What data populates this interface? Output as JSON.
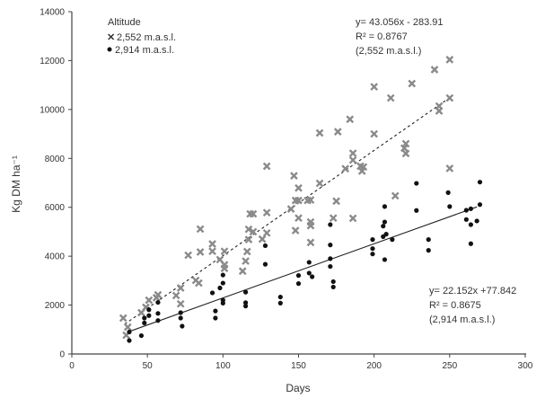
{
  "chart_data": {
    "type": "scatter",
    "title": "",
    "xlabel": "Days",
    "ylabel": "Kg DM ha⁻¹",
    "xlim": [
      0,
      300
    ],
    "ylim": [
      0,
      14000
    ],
    "xticks": [
      0,
      50,
      100,
      150,
      200,
      250,
      300
    ],
    "yticks": [
      0,
      2000,
      4000,
      6000,
      8000,
      10000,
      12000,
      14000
    ],
    "grid": false,
    "legend": {
      "title": "Altitude",
      "placement": "top-left"
    },
    "series": [
      {
        "name": "2,552 m.a.s.l.",
        "marker": "x",
        "color": "#8a8a8a",
        "trend": {
          "slope": 43.056,
          "intercept": -283.91,
          "x_range": [
            35,
            250
          ],
          "style": "dashed",
          "equation": "y= 43.056x - 283.91",
          "r2": "R² = 0.8767",
          "label": "(2,552 m.a.s.l.)"
        },
        "points": [
          [
            34,
            1470
          ],
          [
            36,
            770
          ],
          [
            37,
            1100
          ],
          [
            46,
            1690
          ],
          [
            49,
            1910
          ],
          [
            51,
            2200
          ],
          [
            56,
            2300
          ],
          [
            57,
            2420
          ],
          [
            69,
            2390
          ],
          [
            72,
            2700
          ],
          [
            72,
            2050
          ],
          [
            77,
            4040
          ],
          [
            82,
            3010
          ],
          [
            84,
            2900
          ],
          [
            85,
            5110
          ],
          [
            85,
            4170
          ],
          [
            93,
            4500
          ],
          [
            93,
            4200
          ],
          [
            98,
            3860
          ],
          [
            101,
            4200
          ],
          [
            101,
            3650
          ],
          [
            101,
            3500
          ],
          [
            113,
            3390
          ],
          [
            115,
            3800
          ],
          [
            116,
            4190
          ],
          [
            117,
            4680
          ],
          [
            117,
            5100
          ],
          [
            118,
            5730
          ],
          [
            129,
            7680
          ],
          [
            120,
            5730
          ],
          [
            129,
            5780
          ],
          [
            120,
            5000
          ],
          [
            126,
            4700
          ],
          [
            129,
            4950
          ],
          [
            147,
            7290
          ],
          [
            150,
            6790
          ],
          [
            148,
            6280
          ],
          [
            150,
            6280
          ],
          [
            145,
            5930
          ],
          [
            150,
            5560
          ],
          [
            148,
            5050
          ],
          [
            156,
            6280
          ],
          [
            158,
            6300
          ],
          [
            158,
            5400
          ],
          [
            158,
            5250
          ],
          [
            158,
            4560
          ],
          [
            164,
            6980
          ],
          [
            164,
            9040
          ],
          [
            173,
            5560
          ],
          [
            175,
            6250
          ],
          [
            176,
            9090
          ],
          [
            181,
            7580
          ],
          [
            184,
            9600
          ],
          [
            186,
            8210
          ],
          [
            186,
            7930
          ],
          [
            186,
            5550
          ],
          [
            191,
            7680
          ],
          [
            193,
            7650
          ],
          [
            192,
            7480
          ],
          [
            200,
            10930
          ],
          [
            200,
            9000
          ],
          [
            211,
            10470
          ],
          [
            214,
            6470
          ],
          [
            221,
            8600
          ],
          [
            220,
            8420
          ],
          [
            221,
            8200
          ],
          [
            225,
            11060
          ],
          [
            240,
            11630
          ],
          [
            243,
            10140
          ],
          [
            243,
            9940
          ],
          [
            250,
            12040
          ],
          [
            250,
            10470
          ],
          [
            250,
            7590
          ]
        ]
      },
      {
        "name": "2,914 m.a.s.l.",
        "marker": "dot",
        "color": "#111111",
        "trend": {
          "slope": 22.152,
          "intercept": 77.842,
          "x_range": [
            37,
            268
          ],
          "style": "solid",
          "equation": "y= 22.152x +77.842",
          "r2": "R² = 0.8675",
          "label": "(2,914 m.a.s.l.)"
        },
        "points": [
          [
            38,
            550
          ],
          [
            38,
            900
          ],
          [
            46,
            750
          ],
          [
            48,
            1470
          ],
          [
            48,
            1270
          ],
          [
            51,
            1570
          ],
          [
            51,
            1810
          ],
          [
            57,
            2110
          ],
          [
            57,
            1660
          ],
          [
            57,
            1370
          ],
          [
            72,
            1690
          ],
          [
            72,
            1470
          ],
          [
            73,
            1140
          ],
          [
            93,
            2500
          ],
          [
            95,
            1760
          ],
          [
            95,
            1470
          ],
          [
            98,
            2700
          ],
          [
            100,
            2900
          ],
          [
            100,
            3230
          ],
          [
            100,
            2200
          ],
          [
            100,
            2080
          ],
          [
            115,
            2530
          ],
          [
            115,
            2100
          ],
          [
            115,
            1960
          ],
          [
            128,
            4430
          ],
          [
            128,
            3670
          ],
          [
            138,
            2330
          ],
          [
            138,
            2080
          ],
          [
            150,
            3210
          ],
          [
            150,
            2880
          ],
          [
            157,
            3750
          ],
          [
            157,
            3310
          ],
          [
            159,
            3160
          ],
          [
            171,
            5290
          ],
          [
            171,
            4460
          ],
          [
            171,
            3900
          ],
          [
            171,
            3580
          ],
          [
            173,
            2960
          ],
          [
            173,
            2740
          ],
          [
            199,
            4680
          ],
          [
            199,
            4310
          ],
          [
            199,
            4090
          ],
          [
            206,
            5230
          ],
          [
            207,
            5400
          ],
          [
            207,
            6030
          ],
          [
            206,
            4800
          ],
          [
            208,
            4900
          ],
          [
            212,
            4680
          ],
          [
            207,
            3860
          ],
          [
            228,
            6980
          ],
          [
            228,
            5870
          ],
          [
            236,
            4680
          ],
          [
            236,
            4240
          ],
          [
            249,
            6600
          ],
          [
            250,
            6030
          ],
          [
            261,
            5880
          ],
          [
            264,
            5940
          ],
          [
            261,
            5500
          ],
          [
            264,
            5290
          ],
          [
            268,
            5440
          ],
          [
            264,
            4510
          ],
          [
            270,
            7030
          ],
          [
            270,
            6110
          ]
        ]
      }
    ]
  }
}
